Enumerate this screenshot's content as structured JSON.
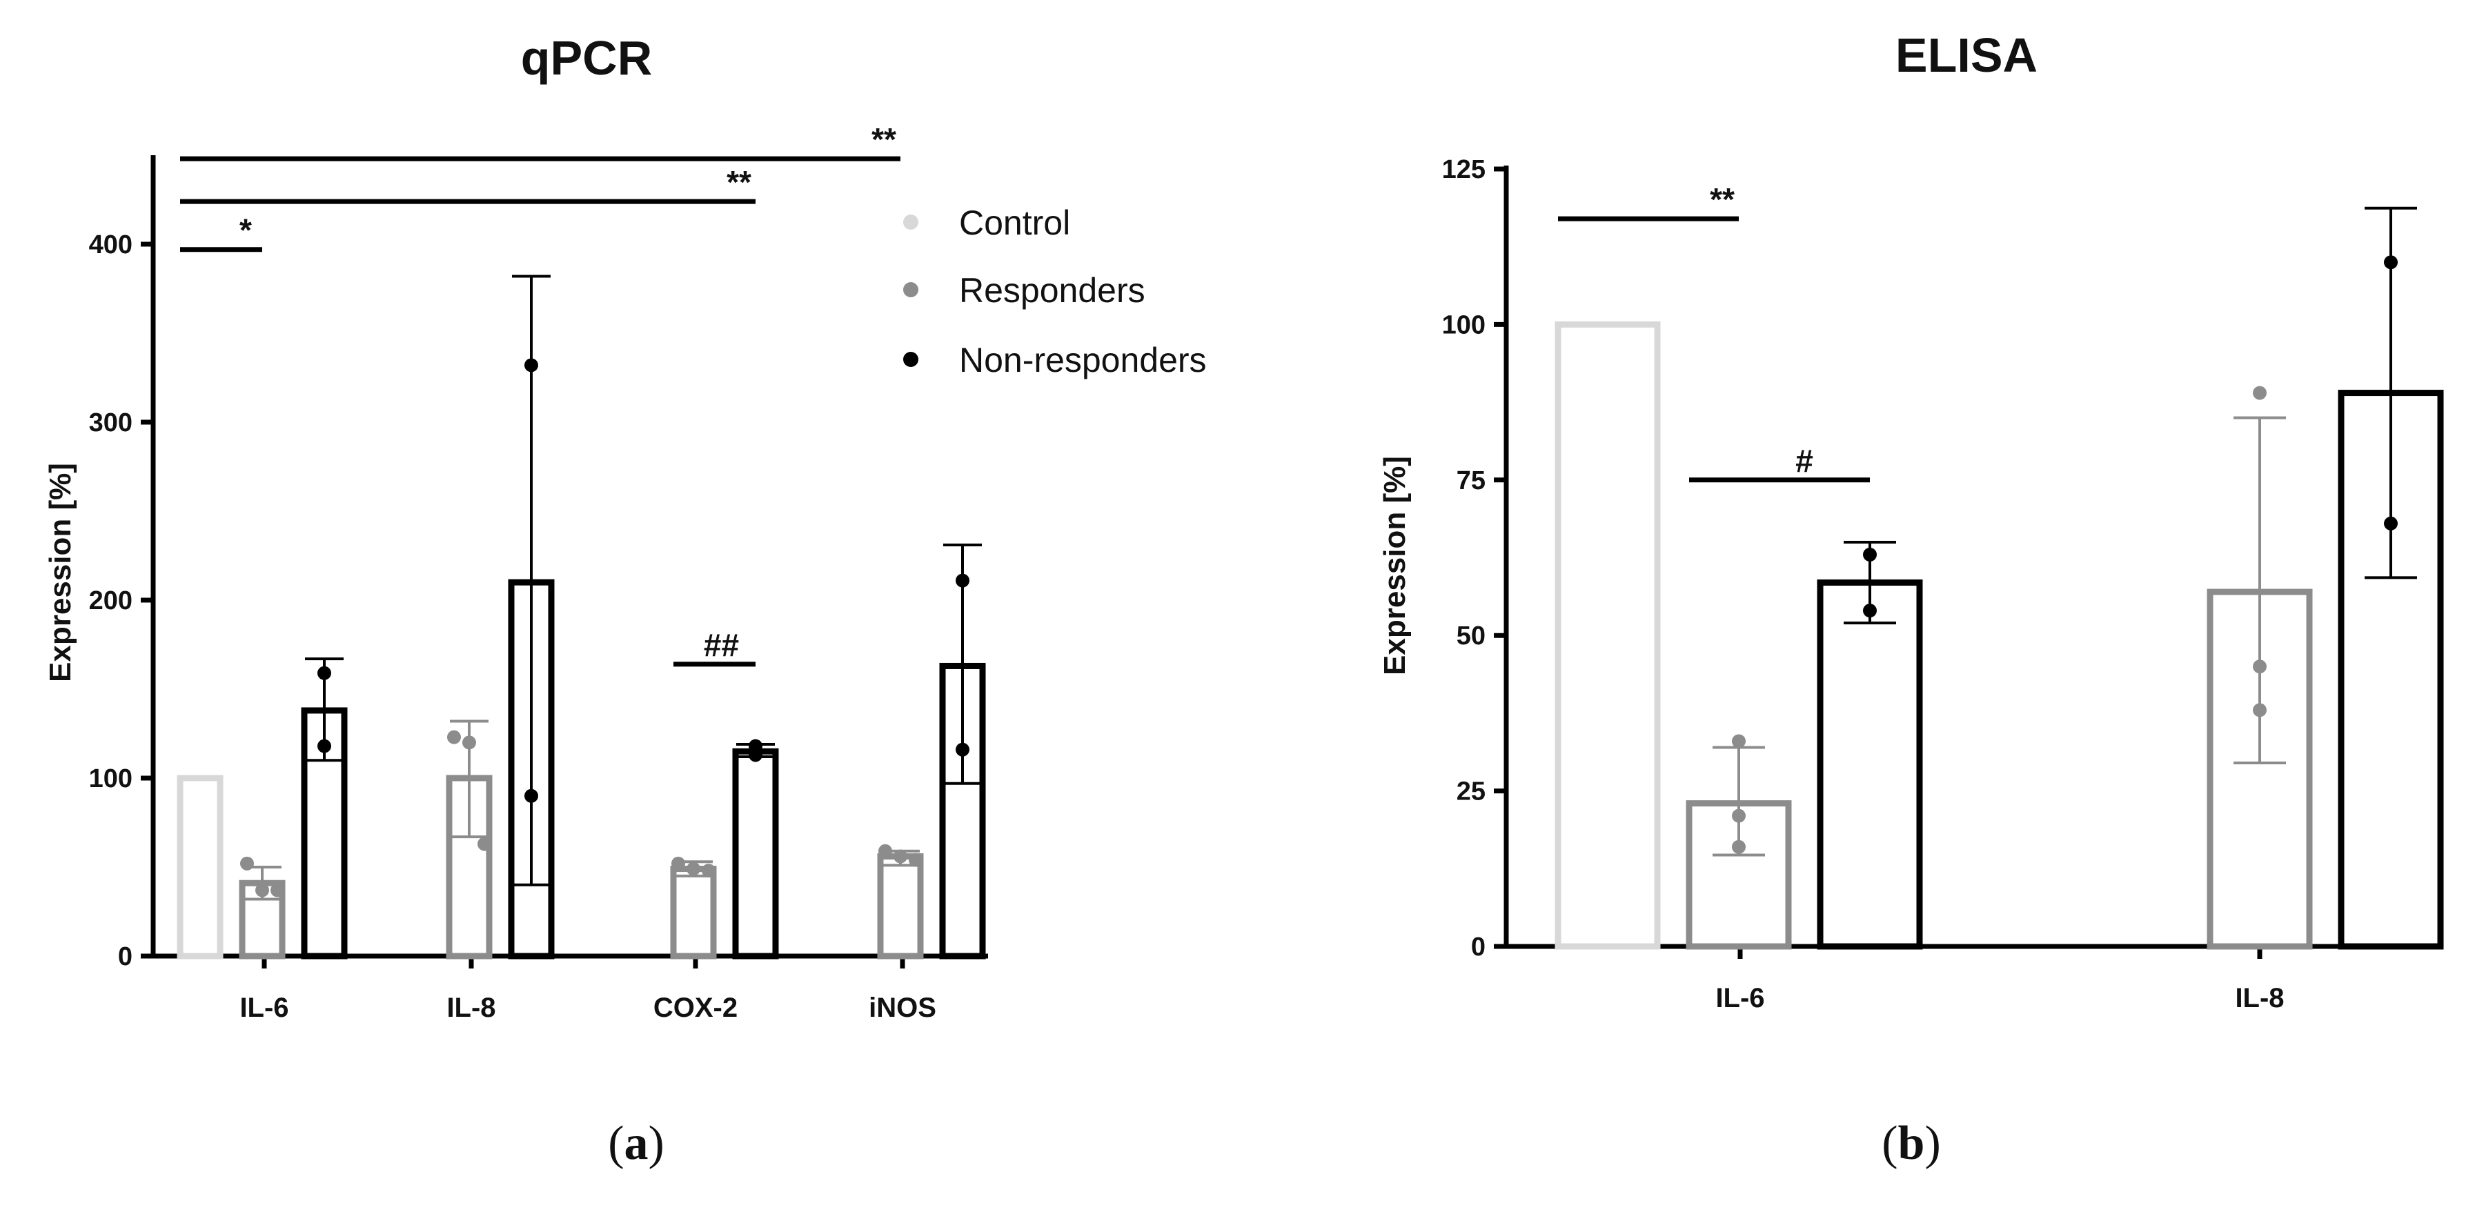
{
  "colors": {
    "control": "#d8d8d8",
    "responders": "#8c8c8c",
    "nonresponders": "#000000"
  },
  "legend": [
    "Control",
    "Responders",
    "Non-responders"
  ],
  "panels": [
    {
      "label_open": "(",
      "label_letter": "a",
      "label_close": ")"
    },
    {
      "label_open": "(",
      "label_letter": "b",
      "label_close": ")"
    }
  ],
  "chart_data": [
    {
      "type": "bar",
      "title": "qPCR",
      "ylabel": "Expression [%]",
      "xlabel": "",
      "ylim": [
        0,
        450
      ],
      "yticks": [
        0,
        100,
        200,
        300,
        400
      ],
      "categories": [
        "IL-6",
        "IL-8",
        "COX-2",
        "iNOS"
      ],
      "series": [
        {
          "name": "Control",
          "values": [
            100,
            null,
            null,
            null
          ],
          "points": [
            [],
            [],
            [],
            []
          ],
          "err": [
            null,
            null,
            null,
            null
          ]
        },
        {
          "name": "Responders",
          "values": [
            41,
            100,
            49,
            56
          ],
          "points": [
            [
              52,
              37,
              37
            ],
            [
              123,
              120,
              63
            ],
            [
              52,
              49,
              48
            ],
            [
              59,
              56,
              54
            ]
          ],
          "err": [
            [
              32,
              50
            ],
            [
              67,
              132
            ],
            [
              45,
              53
            ],
            [
              51,
              59
            ]
          ]
        },
        {
          "name": "Non-responders",
          "values": [
            138,
            210,
            115,
            163
          ],
          "points": [
            [
              159,
              118
            ],
            [
              332,
              90
            ],
            [
              118,
              113
            ],
            [
              211,
              116
            ]
          ],
          "err": [
            [
              110,
              167
            ],
            [
              40,
              382
            ],
            [
              112,
              119
            ],
            [
              97,
              231
            ]
          ]
        }
      ],
      "significance": [
        {
          "label": "*",
          "from": "IL-6 Control",
          "to": "IL-6 Responders",
          "level": 397
        },
        {
          "label": "**",
          "from": "IL-6 Control",
          "to": "COX-2 Non-responders",
          "level": 424
        },
        {
          "label": "**",
          "from": "IL-6 Control",
          "to": "iNOS Responders",
          "level": 448
        },
        {
          "label": "##",
          "from": "COX-2 Responders",
          "to": "COX-2 Non-responders",
          "level": 164
        }
      ]
    },
    {
      "type": "bar",
      "title": "ELISA",
      "ylabel": "Expression [%]",
      "xlabel": "",
      "ylim": [
        0,
        125
      ],
      "yticks": [
        0,
        25,
        50,
        75,
        100,
        125
      ],
      "categories": [
        "IL-6",
        "IL-8"
      ],
      "series": [
        {
          "name": "Control",
          "values": [
            100,
            null
          ],
          "points": [
            [],
            []
          ],
          "err": [
            null,
            null
          ]
        },
        {
          "name": "Responders",
          "values": [
            23,
            57
          ],
          "points": [
            [
              33,
              21,
              16
            ],
            [
              89,
              45,
              38
            ]
          ],
          "err": [
            [
              14.7,
              32
            ],
            [
              29.5,
              85
            ]
          ]
        },
        {
          "name": "Non-responders",
          "values": [
            58.5,
            89
          ],
          "points": [
            [
              63,
              54
            ],
            [
              110,
              68
            ]
          ],
          "err": [
            [
              52,
              65
            ],
            [
              59.3,
              118.7
            ]
          ]
        }
      ],
      "significance": [
        {
          "label": "**",
          "from": "IL-6 Control",
          "to": "IL-6 Responders",
          "level": 117
        },
        {
          "label": "#",
          "from": "IL-6 Responders",
          "to": "IL-6 Non-responders",
          "level": 75
        }
      ]
    }
  ]
}
